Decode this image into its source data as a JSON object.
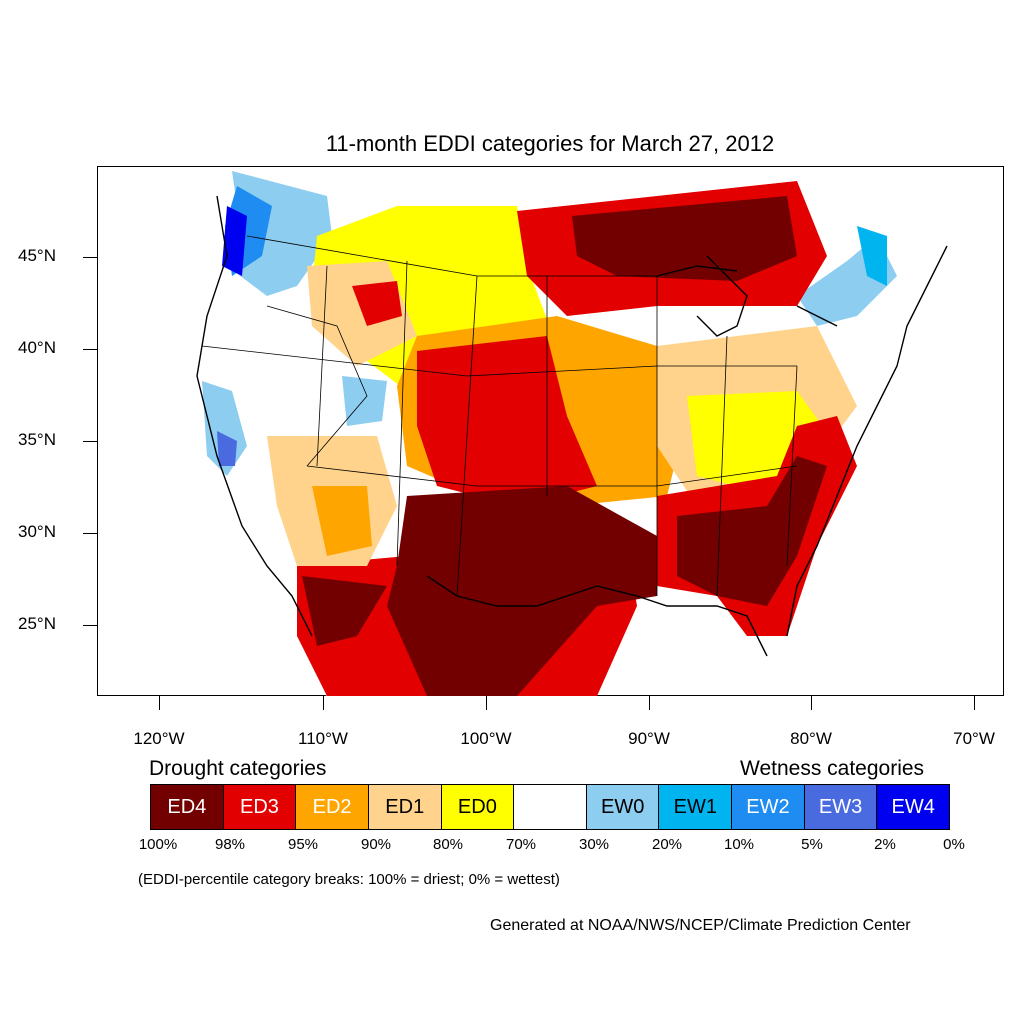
{
  "title": "11-month EDDI categories for March 27, 2012",
  "latitude_labels": [
    "45°N",
    "40°N",
    "35°N",
    "30°N",
    "25°N"
  ],
  "longitude_labels": [
    "120°W",
    "110°W",
    "100°W",
    "90°W",
    "80°W",
    "70°W"
  ],
  "legend": {
    "drought_heading": "Drought categories",
    "wetness_heading": "Wetness categories",
    "categories": [
      {
        "label": "ED4",
        "color": "#720000",
        "text_color": "#ffffff"
      },
      {
        "label": "ED3",
        "color": "#e20000",
        "text_color": "#ffffff"
      },
      {
        "label": "ED2",
        "color": "#ffa500",
        "text_color": "#ffffff"
      },
      {
        "label": "ED1",
        "color": "#ffd38c",
        "text_color": "#000000"
      },
      {
        "label": "ED0",
        "color": "#ffff00",
        "text_color": "#000000"
      },
      {
        "label": "",
        "color": "#ffffff",
        "text_color": "#000000"
      },
      {
        "label": "EW0",
        "color": "#8ccdf0",
        "text_color": "#000000"
      },
      {
        "label": "EW1",
        "color": "#00b4f0",
        "text_color": "#000000"
      },
      {
        "label": "EW2",
        "color": "#1e8cf0",
        "text_color": "#ffffff"
      },
      {
        "label": "EW3",
        "color": "#4a6be0",
        "text_color": "#ffffff"
      },
      {
        "label": "EW4",
        "color": "#0000f0",
        "text_color": "#ffffff"
      }
    ],
    "breaks": [
      "100%",
      "98%",
      "95%",
      "90%",
      "80%",
      "70%",
      "30%",
      "20%",
      "10%",
      "5%",
      "2%",
      "0%"
    ],
    "note": "(EDDI-percentile category breaks: 100% = driest; 0% = wettest)"
  },
  "credit": "Generated at NOAA/NWS/NCEP/Climate Prediction Center"
}
